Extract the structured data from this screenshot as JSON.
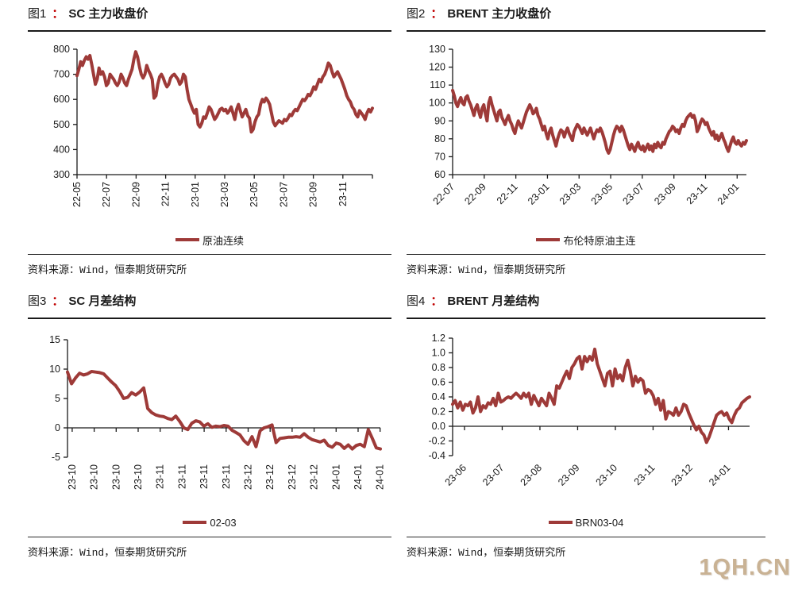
{
  "line_color": "#9E3A38",
  "colon_color": "#C00000",
  "watermark": "1QH.CN",
  "watermark_color": "#C9B294",
  "panels": [
    {
      "fig_label": "图1",
      "colon": "：",
      "title": "SC 主力收盘价",
      "legend": "原油连续",
      "source": "资料来源：Wind，恒泰期货研究所",
      "chart_data": {
        "type": "line",
        "title": "SC 主力收盘价",
        "series_name": "原油连续",
        "ylim": [
          300,
          800
        ],
        "y_step": 100,
        "y_decimals": 0,
        "x_label_rotation": 90,
        "grid": false,
        "legend_position": "bottom",
        "x_labels": [
          "22-05",
          "22-07",
          "22-09",
          "22-11",
          "23-01",
          "23-03",
          "23-05",
          "23-07",
          "23-09",
          "23-11"
        ],
        "values": [
          695,
          720,
          750,
          735,
          755,
          770,
          760,
          775,
          740,
          700,
          660,
          680,
          725,
          700,
          710,
          690,
          655,
          665,
          700,
          690,
          680,
          665,
          655,
          670,
          700,
          685,
          665,
          655,
          680,
          700,
          720,
          760,
          790,
          770,
          730,
          700,
          685,
          700,
          735,
          715,
          700,
          680,
          605,
          615,
          660,
          690,
          700,
          685,
          665,
          650,
          660,
          685,
          695,
          700,
          690,
          680,
          660,
          670,
          700,
          690,
          640,
          600,
          580,
          560,
          545,
          560,
          500,
          490,
          505,
          530,
          525,
          545,
          570,
          560,
          540,
          520,
          530,
          545,
          560,
          565,
          555,
          560,
          545,
          555,
          570,
          545,
          520,
          560,
          580,
          555,
          530,
          545,
          560,
          535,
          525,
          470,
          480,
          510,
          530,
          540,
          580,
          600,
          590,
          605,
          595,
          580,
          545,
          510,
          495,
          505,
          515,
          510,
          505,
          520,
          515,
          525,
          540,
          535,
          550,
          560,
          555,
          570,
          585,
          600,
          595,
          605,
          620,
          615,
          630,
          650,
          640,
          660,
          680,
          670,
          690,
          700,
          720,
          745,
          735,
          710,
          690,
          700,
          710,
          695,
          680,
          660,
          640,
          615,
          600,
          590,
          570,
          560,
          540,
          530,
          555,
          545,
          535,
          520,
          545,
          560,
          550,
          565
        ]
      }
    },
    {
      "fig_label": "图2",
      "colon": "：",
      "title": "BRENT 主力收盘价",
      "legend": "布伦特原油主连",
      "source": "资料来源：Wind，恒泰期货研究所",
      "chart_data": {
        "type": "line",
        "title": "BRENT 主力收盘价",
        "series_name": "布伦特原油主连",
        "ylim": [
          60,
          130
        ],
        "y_step": 10,
        "y_decimals": 0,
        "x_label_rotation": 45,
        "grid": false,
        "legend_position": "bottom",
        "x_labels": [
          "22-07",
          "22-09",
          "22-11",
          "23-01",
          "23-03",
          "23-05",
          "23-07",
          "23-09",
          "23-11",
          "24-01"
        ],
        "values": [
          107,
          104,
          100,
          98,
          101,
          103,
          100,
          99,
          103,
          104,
          101,
          99,
          96,
          93,
          97,
          99,
          95,
          92,
          97,
          99,
          94,
          90,
          100,
          103,
          99,
          96,
          93,
          90,
          95,
          96,
          92,
          90,
          88,
          91,
          93,
          90,
          88,
          85,
          83,
          87,
          90,
          88,
          86,
          89,
          92,
          95,
          97,
          99,
          97,
          94,
          95,
          97,
          93,
          91,
          88,
          85,
          87,
          83,
          80,
          84,
          86,
          82,
          79,
          76,
          80,
          83,
          85,
          84,
          81,
          84,
          86,
          83,
          81,
          79,
          84,
          86,
          88,
          87,
          85,
          83,
          86,
          84,
          82,
          84,
          86,
          83,
          80,
          83,
          85,
          84,
          86,
          84,
          81,
          78,
          74,
          72,
          74,
          78,
          82,
          85,
          87,
          86,
          84,
          87,
          85,
          82,
          79,
          76,
          74,
          77,
          75,
          73,
          76,
          78,
          75,
          74,
          76,
          73,
          75,
          77,
          74,
          76,
          73,
          77,
          75,
          78,
          76,
          75,
          78,
          77,
          80,
          82,
          84,
          85,
          87,
          86,
          84,
          85,
          83,
          86,
          88,
          87,
          90,
          92,
          93,
          94,
          92,
          93,
          90,
          84,
          86,
          89,
          91,
          90,
          88,
          89,
          86,
          84,
          82,
          84,
          80,
          82,
          79,
          81,
          83,
          80,
          78,
          75,
          73,
          76,
          79,
          81,
          78,
          77,
          79,
          77,
          76,
          78,
          77,
          79
        ]
      }
    },
    {
      "fig_label": "图3",
      "colon": "：",
      "title": "SC 月差结构",
      "legend": "02-03",
      "source": "资料来源：Wind，恒泰期货研究所",
      "chart_data": {
        "type": "line",
        "title": "SC 月差结构",
        "series_name": "02-03",
        "ylim": [
          -5,
          15
        ],
        "y_step": 5,
        "y_decimals": 0,
        "x_label_rotation": 90,
        "zero_axis": true,
        "grid": false,
        "legend_position": "bottom",
        "x_labels": [
          "23-10",
          "23-10",
          "23-10",
          "23-10",
          "23-11",
          "23-11",
          "23-11",
          "23-11",
          "23-12",
          "23-12",
          "23-12",
          "23-12",
          "24-01",
          "24-01",
          "24-01"
        ],
        "values": [
          9.5,
          7.5,
          8.5,
          9.3,
          9.0,
          9.2,
          9.6,
          9.5,
          9.4,
          9.2,
          8.5,
          7.8,
          7.2,
          6.2,
          5.0,
          5.2,
          6.0,
          5.6,
          6.1,
          6.8,
          3.3,
          2.6,
          2.2,
          2.0,
          1.9,
          1.6,
          1.4,
          2.0,
          1.1,
          0.0,
          -0.3,
          0.8,
          1.2,
          1.0,
          0.3,
          0.7,
          0.1,
          0.3,
          0.2,
          0.4,
          0.3,
          -0.4,
          -0.8,
          -1.2,
          -2.2,
          -2.8,
          -1.5,
          -3.2,
          -0.5,
          0.0,
          0.2,
          0.5,
          -2.5,
          -1.8,
          -1.7,
          -1.6,
          -1.6,
          -1.5,
          -1.6,
          -1.0,
          -1.6,
          -2.0,
          -2.2,
          -2.4,
          -2.1,
          -3.0,
          -3.3,
          -2.6,
          -2.8,
          -3.5,
          -2.9,
          -3.6,
          -3.0,
          -2.8,
          -3.2,
          -0.3,
          -1.8,
          -3.4,
          -3.6
        ]
      }
    },
    {
      "fig_label": "图4",
      "colon": "：",
      "title": "BRENT 月差结构",
      "legend": "BRN03-04",
      "source": "资料来源：Wind，恒泰期货研究所",
      "chart_data": {
        "type": "line",
        "title": "BRENT 月差结构",
        "series_name": "BRN03-04",
        "ylim": [
          -0.4,
          1.2
        ],
        "y_step": 0.2,
        "y_decimals": 1,
        "x_label_rotation": 45,
        "zero_axis": true,
        "grid": false,
        "legend_position": "bottom",
        "x_labels": [
          "23-06",
          "23-07",
          "23-08",
          "23-09",
          "23-10",
          "23-11",
          "23-12",
          "24-01"
        ],
        "values": [
          0.3,
          0.35,
          0.25,
          0.33,
          0.22,
          0.3,
          0.28,
          0.33,
          0.18,
          0.25,
          0.4,
          0.2,
          0.28,
          0.25,
          0.32,
          0.3,
          0.38,
          0.28,
          0.45,
          0.33,
          0.35,
          0.38,
          0.4,
          0.38,
          0.42,
          0.45,
          0.42,
          0.38,
          0.45,
          0.4,
          0.45,
          0.3,
          0.42,
          0.35,
          0.28,
          0.38,
          0.33,
          0.28,
          0.45,
          0.38,
          0.3,
          0.55,
          0.52,
          0.6,
          0.68,
          0.75,
          0.65,
          0.8,
          0.85,
          0.92,
          0.95,
          0.78,
          0.95,
          0.88,
          0.95,
          0.9,
          1.05,
          0.85,
          0.75,
          0.65,
          0.55,
          0.72,
          0.75,
          0.55,
          0.78,
          0.65,
          0.7,
          0.62,
          0.8,
          0.9,
          0.75,
          0.55,
          0.68,
          0.6,
          0.65,
          0.62,
          0.45,
          0.5,
          0.48,
          0.42,
          0.3,
          0.38,
          0.22,
          0.35,
          0.1,
          0.2,
          0.18,
          0.15,
          0.25,
          0.15,
          0.2,
          0.3,
          0.28,
          0.18,
          0.1,
          0.02,
          -0.05,
          0.0,
          -0.08,
          -0.12,
          -0.22,
          -0.15,
          -0.05,
          0.05,
          0.15,
          0.18,
          0.2,
          0.15,
          0.18,
          0.1,
          0.05,
          0.15,
          0.22,
          0.25,
          0.32,
          0.35,
          0.38,
          0.4
        ]
      }
    }
  ]
}
